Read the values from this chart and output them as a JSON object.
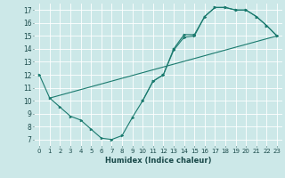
{
  "xlabel": "Humidex (Indice chaleur)",
  "background_color": "#cce8e8",
  "grid_color": "#ffffff",
  "line_color": "#1a7a6e",
  "xlim": [
    -0.5,
    23.5
  ],
  "ylim": [
    6.5,
    17.5
  ],
  "xticks": [
    0,
    1,
    2,
    3,
    4,
    5,
    6,
    7,
    8,
    9,
    10,
    11,
    12,
    13,
    14,
    15,
    16,
    17,
    18,
    19,
    20,
    21,
    22,
    23
  ],
  "yticks": [
    7,
    8,
    9,
    10,
    11,
    12,
    13,
    14,
    15,
    16,
    17
  ],
  "line1_x": [
    0,
    1,
    2,
    3,
    4,
    5,
    6,
    7,
    8,
    9,
    10,
    11,
    12,
    13,
    14,
    15,
    16,
    17,
    18,
    19,
    20,
    21,
    22,
    23
  ],
  "line1_y": [
    12.0,
    10.2,
    9.5,
    8.8,
    8.5,
    7.8,
    7.1,
    7.0,
    7.3,
    8.7,
    10.0,
    11.5,
    12.0,
    13.9,
    14.9,
    15.0,
    16.5,
    17.2,
    17.2,
    17.0,
    17.0,
    16.5,
    15.8,
    15.0
  ],
  "line2_x": [
    1,
    23
  ],
  "line2_y": [
    10.2,
    15.0
  ],
  "line3_x": [
    10,
    11,
    12,
    13,
    14,
    15,
    16,
    17,
    18,
    19,
    20,
    21,
    22,
    23
  ],
  "line3_y": [
    10.0,
    11.5,
    12.0,
    14.0,
    15.1,
    15.1,
    16.5,
    17.2,
    17.2,
    17.0,
    17.0,
    16.5,
    15.8,
    15.0
  ]
}
